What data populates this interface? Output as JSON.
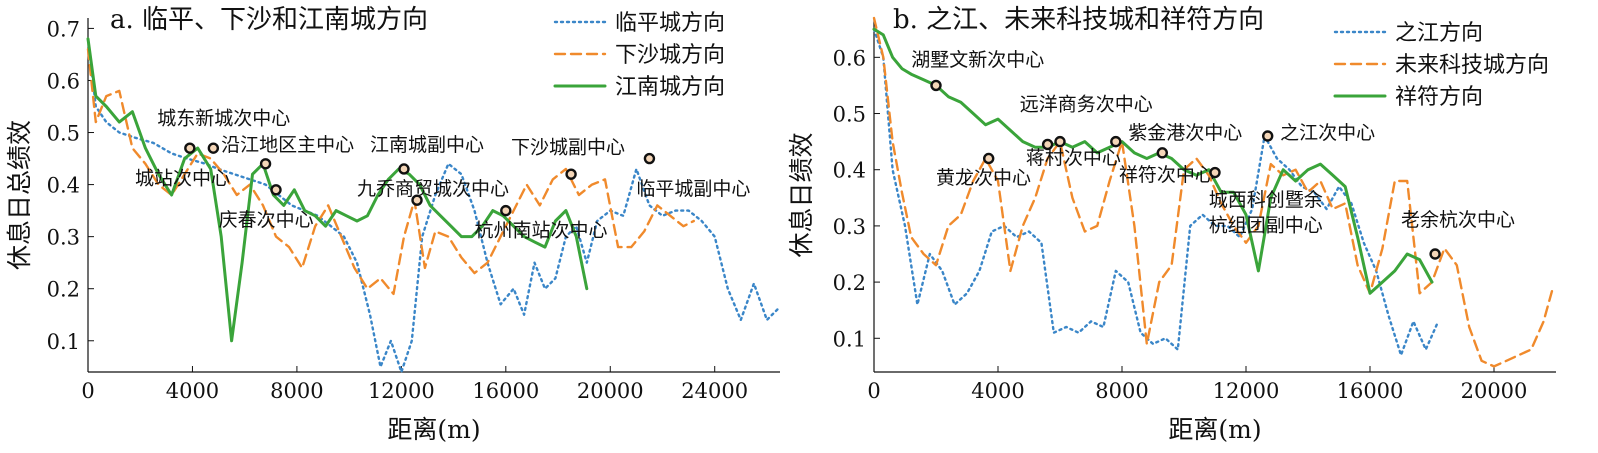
{
  "chart_data": [
    {
      "type": "line",
      "title": "a. 临平、下沙和江南城方向",
      "xlabel": "距离(m)",
      "ylabel": "休息日总绩效",
      "xlim": [
        0,
        26500
      ],
      "ylim": [
        0.04,
        0.72
      ],
      "xticks": [
        0,
        4000,
        8000,
        12000,
        16000,
        20000,
        24000
      ],
      "yticks": [
        0.1,
        0.2,
        0.3,
        0.4,
        0.5,
        0.6,
        0.7
      ],
      "xtick_labels": [
        "0",
        "4000",
        "8000",
        "12000",
        "16000",
        "20000",
        "24000"
      ],
      "ytick_labels": [
        "0.1",
        "0.2",
        "0.3",
        "0.4",
        "0.5",
        "0.6",
        "0.7"
      ],
      "legend_position": "top-right",
      "grid": false,
      "series": [
        {
          "name": "临平城方向",
          "color": "#3a86c8",
          "style": "dotted",
          "x": [
            0,
            300,
            700,
            1200,
            1800,
            2500,
            3200,
            3800,
            4500,
            5000,
            5600,
            6200,
            6800,
            7300,
            7800,
            8300,
            8800,
            9300,
            9800,
            10300,
            10800,
            11200,
            11600,
            12000,
            12400,
            12800,
            13300,
            13800,
            14300,
            14800,
            15300,
            15800,
            16300,
            16700,
            17100,
            17500,
            17900,
            18300,
            18700,
            19100,
            19500,
            20000,
            20500,
            21000,
            21500,
            22000,
            22500,
            23000,
            23500,
            24000,
            24500,
            25000,
            25500,
            26000,
            26400
          ],
          "y": [
            0.68,
            0.55,
            0.52,
            0.5,
            0.49,
            0.48,
            0.46,
            0.45,
            0.44,
            0.43,
            0.42,
            0.41,
            0.4,
            0.38,
            0.36,
            0.35,
            0.34,
            0.32,
            0.3,
            0.25,
            0.15,
            0.05,
            0.1,
            0.04,
            0.1,
            0.3,
            0.38,
            0.44,
            0.42,
            0.35,
            0.25,
            0.17,
            0.2,
            0.15,
            0.25,
            0.2,
            0.22,
            0.3,
            0.32,
            0.25,
            0.33,
            0.35,
            0.34,
            0.43,
            0.36,
            0.34,
            0.35,
            0.35,
            0.33,
            0.3,
            0.2,
            0.14,
            0.21,
            0.14,
            0.16
          ]
        },
        {
          "name": "下沙城方向",
          "color": "#f08a2c",
          "style": "dashed",
          "x": [
            0,
            300,
            700,
            1200,
            1700,
            2200,
            2700,
            3200,
            3700,
            4200,
            4700,
            5200,
            5700,
            6200,
            6700,
            7200,
            7700,
            8200,
            8700,
            9200,
            9700,
            10200,
            10700,
            11200,
            11700,
            12100,
            12500,
            12900,
            13300,
            13800,
            14300,
            14800,
            15300,
            15800,
            16300,
            16800,
            17300,
            17800,
            18300,
            18800,
            19300,
            19800,
            20300,
            20800,
            21300,
            21800,
            22300,
            22800,
            23200
          ],
          "y": [
            0.66,
            0.52,
            0.57,
            0.58,
            0.47,
            0.44,
            0.4,
            0.38,
            0.42,
            0.46,
            0.45,
            0.42,
            0.38,
            0.4,
            0.36,
            0.3,
            0.28,
            0.24,
            0.32,
            0.36,
            0.3,
            0.24,
            0.2,
            0.22,
            0.19,
            0.3,
            0.37,
            0.24,
            0.31,
            0.3,
            0.26,
            0.23,
            0.25,
            0.3,
            0.35,
            0.4,
            0.36,
            0.41,
            0.43,
            0.38,
            0.4,
            0.41,
            0.28,
            0.28,
            0.31,
            0.36,
            0.34,
            0.32,
            0.33
          ]
        },
        {
          "name": "江南城方向",
          "color": "#3aa43a",
          "style": "solid",
          "x": [
            0,
            300,
            700,
            1200,
            1700,
            2200,
            2700,
            3200,
            3700,
            4200,
            4700,
            5100,
            5500,
            5900,
            6300,
            6700,
            7100,
            7500,
            7900,
            8300,
            8700,
            9100,
            9500,
            9900,
            10300,
            10700,
            11100,
            11500,
            11900,
            12300,
            12700,
            13100,
            13500,
            13900,
            14300,
            14700,
            15100,
            15500,
            15900,
            16300,
            16700,
            17100,
            17500,
            17900,
            18300,
            18700,
            19100
          ],
          "y": [
            0.68,
            0.57,
            0.55,
            0.52,
            0.54,
            0.47,
            0.42,
            0.38,
            0.45,
            0.47,
            0.43,
            0.3,
            0.1,
            0.25,
            0.42,
            0.44,
            0.38,
            0.36,
            0.39,
            0.35,
            0.34,
            0.32,
            0.35,
            0.34,
            0.33,
            0.34,
            0.38,
            0.41,
            0.43,
            0.42,
            0.4,
            0.36,
            0.34,
            0.32,
            0.3,
            0.3,
            0.32,
            0.35,
            0.34,
            0.32,
            0.3,
            0.29,
            0.28,
            0.33,
            0.35,
            0.3,
            0.2
          ]
        }
      ],
      "points": [
        {
          "x": 3900,
          "y": 0.47
        },
        {
          "x": 4800,
          "y": 0.47
        },
        {
          "x": 6800,
          "y": 0.44
        },
        {
          "x": 7200,
          "y": 0.39
        },
        {
          "x": 12100,
          "y": 0.43
        },
        {
          "x": 12600,
          "y": 0.37
        },
        {
          "x": 16000,
          "y": 0.35
        },
        {
          "x": 18500,
          "y": 0.42
        },
        {
          "x": 21500,
          "y": 0.45
        }
      ],
      "annotations": [
        {
          "text": "城东新城次中心",
          "x": 2650,
          "y": 0.515
        },
        {
          "text": "城站次中心",
          "x": 1800,
          "y": 0.4
        },
        {
          "text": "沿江地区主中心",
          "x": 5100,
          "y": 0.465
        },
        {
          "text": "庆春次中心",
          "x": 5000,
          "y": 0.32
        },
        {
          "text": "江南城副中心",
          "x": 10800,
          "y": 0.465
        },
        {
          "text": "九乔商贸城次中心",
          "x": 10300,
          "y": 0.38
        },
        {
          "text": "下沙城副中心",
          "x": 16200,
          "y": 0.46
        },
        {
          "text": "杭州南站次中心",
          "x": 14800,
          "y": 0.3
        },
        {
          "text": "临平城副中心",
          "x": 21000,
          "y": 0.38
        }
      ]
    },
    {
      "type": "line",
      "title": "b. 之江、未来科技城和祥符方向",
      "xlabel": "距离(m)",
      "ylabel": "休息日绩效",
      "xlim": [
        0,
        22000
      ],
      "ylim": [
        0.04,
        0.67
      ],
      "xticks": [
        0,
        4000,
        8000,
        12000,
        16000,
        20000
      ],
      "yticks": [
        0.1,
        0.2,
        0.3,
        0.4,
        0.5,
        0.6
      ],
      "xtick_labels": [
        "0",
        "4000",
        "8000",
        "12000",
        "16000",
        "20000"
      ],
      "ytick_labels": [
        "0.1",
        "0.2",
        "0.3",
        "0.4",
        "0.5",
        "0.6"
      ],
      "legend_position": "top-right",
      "grid": false,
      "series": [
        {
          "name": "之江方向",
          "color": "#3a86c8",
          "style": "dotted",
          "x": [
            0,
            300,
            600,
            1000,
            1400,
            1800,
            2200,
            2600,
            3000,
            3400,
            3800,
            4200,
            4600,
            5000,
            5400,
            5800,
            6200,
            6600,
            7000,
            7400,
            7800,
            8200,
            8600,
            9000,
            9400,
            9800,
            10200,
            10600,
            11000,
            11400,
            11800,
            12200,
            12600,
            13000,
            13400,
            13800,
            14200,
            14600,
            15000,
            15400,
            15800,
            16200,
            16600,
            17000,
            17400,
            17800,
            18200
          ],
          "y": [
            0.65,
            0.6,
            0.4,
            0.3,
            0.16,
            0.25,
            0.22,
            0.16,
            0.18,
            0.22,
            0.29,
            0.3,
            0.28,
            0.29,
            0.27,
            0.11,
            0.12,
            0.11,
            0.13,
            0.12,
            0.22,
            0.2,
            0.11,
            0.09,
            0.1,
            0.08,
            0.3,
            0.32,
            0.3,
            0.3,
            0.28,
            0.33,
            0.46,
            0.42,
            0.4,
            0.37,
            0.36,
            0.33,
            0.37,
            0.34,
            0.27,
            0.22,
            0.14,
            0.07,
            0.13,
            0.08,
            0.13
          ]
        },
        {
          "name": "未来科技城方向",
          "color": "#f08a2c",
          "style": "dashed",
          "x": [
            0,
            300,
            600,
            900,
            1200,
            1600,
            2000,
            2400,
            2800,
            3200,
            3600,
            4000,
            4400,
            4800,
            5200,
            5600,
            6000,
            6400,
            6800,
            7200,
            7600,
            8000,
            8400,
            8800,
            9200,
            9600,
            10000,
            10400,
            10800,
            11200,
            11600,
            12000,
            12400,
            12800,
            13200,
            13600,
            14000,
            14400,
            14800,
            15200,
            15600,
            16000,
            16400,
            16800,
            17200,
            17600,
            18000,
            18400,
            18800,
            19200,
            19600,
            20000,
            20400,
            20800,
            21200,
            21600,
            21900
          ],
          "y": [
            0.67,
            0.6,
            0.45,
            0.36,
            0.28,
            0.25,
            0.23,
            0.3,
            0.32,
            0.38,
            0.42,
            0.38,
            0.22,
            0.3,
            0.35,
            0.42,
            0.45,
            0.35,
            0.29,
            0.3,
            0.38,
            0.45,
            0.3,
            0.09,
            0.2,
            0.23,
            0.4,
            0.42,
            0.39,
            0.34,
            0.3,
            0.27,
            0.3,
            0.41,
            0.39,
            0.4,
            0.36,
            0.38,
            0.33,
            0.34,
            0.23,
            0.18,
            0.26,
            0.38,
            0.38,
            0.18,
            0.2,
            0.26,
            0.23,
            0.12,
            0.06,
            0.05,
            0.06,
            0.07,
            0.08,
            0.13,
            0.19
          ]
        },
        {
          "name": "祥符方向",
          "color": "#3aa43a",
          "style": "solid",
          "x": [
            0,
            300,
            600,
            900,
            1200,
            1600,
            2000,
            2400,
            2800,
            3200,
            3600,
            4000,
            4400,
            4800,
            5200,
            5600,
            6000,
            6400,
            6800,
            7200,
            7600,
            8000,
            8400,
            8800,
            9200,
            9600,
            10000,
            10400,
            10800,
            11200,
            11600,
            12000,
            12400,
            12800,
            13200,
            13600,
            14000,
            14400,
            14800,
            15200,
            15600,
            16000,
            16400,
            16800,
            17200,
            17600,
            18000
          ],
          "y": [
            0.65,
            0.64,
            0.6,
            0.58,
            0.57,
            0.56,
            0.55,
            0.53,
            0.52,
            0.5,
            0.48,
            0.49,
            0.47,
            0.45,
            0.44,
            0.44,
            0.45,
            0.44,
            0.45,
            0.43,
            0.44,
            0.45,
            0.43,
            0.42,
            0.43,
            0.42,
            0.4,
            0.39,
            0.4,
            0.36,
            0.36,
            0.32,
            0.22,
            0.35,
            0.4,
            0.38,
            0.4,
            0.41,
            0.39,
            0.37,
            0.28,
            0.18,
            0.2,
            0.22,
            0.25,
            0.24,
            0.2
          ]
        }
      ],
      "points": [
        {
          "x": 2000,
          "y": 0.55
        },
        {
          "x": 3700,
          "y": 0.42
        },
        {
          "x": 5600,
          "y": 0.445
        },
        {
          "x": 6000,
          "y": 0.45
        },
        {
          "x": 7800,
          "y": 0.45
        },
        {
          "x": 9300,
          "y": 0.43
        },
        {
          "x": 11000,
          "y": 0.395
        },
        {
          "x": 12700,
          "y": 0.46
        },
        {
          "x": 18100,
          "y": 0.25
        }
      ],
      "annotations": [
        {
          "text": "湖墅文新次中心",
          "x": 1200,
          "y": 0.585
        },
        {
          "text": "远洋商务次中心",
          "x": 4700,
          "y": 0.505
        },
        {
          "text": "蒋村次中心",
          "x": 4900,
          "y": 0.41
        },
        {
          "text": "紫金港次中心",
          "x": 8200,
          "y": 0.455
        },
        {
          "text": "之江次中心",
          "x": 13100,
          "y": 0.455
        },
        {
          "text": "黄龙次中心",
          "x": 2000,
          "y": 0.375
        },
        {
          "text": "祥符次中心",
          "x": 7900,
          "y": 0.38
        },
        {
          "text": "城西科创暨余",
          "x": 10800,
          "y": 0.335
        },
        {
          "text": "杭组团副中心",
          "x": 10800,
          "y": 0.29
        },
        {
          "text": "老余杭次中心",
          "x": 17000,
          "y": 0.3
        }
      ]
    }
  ]
}
